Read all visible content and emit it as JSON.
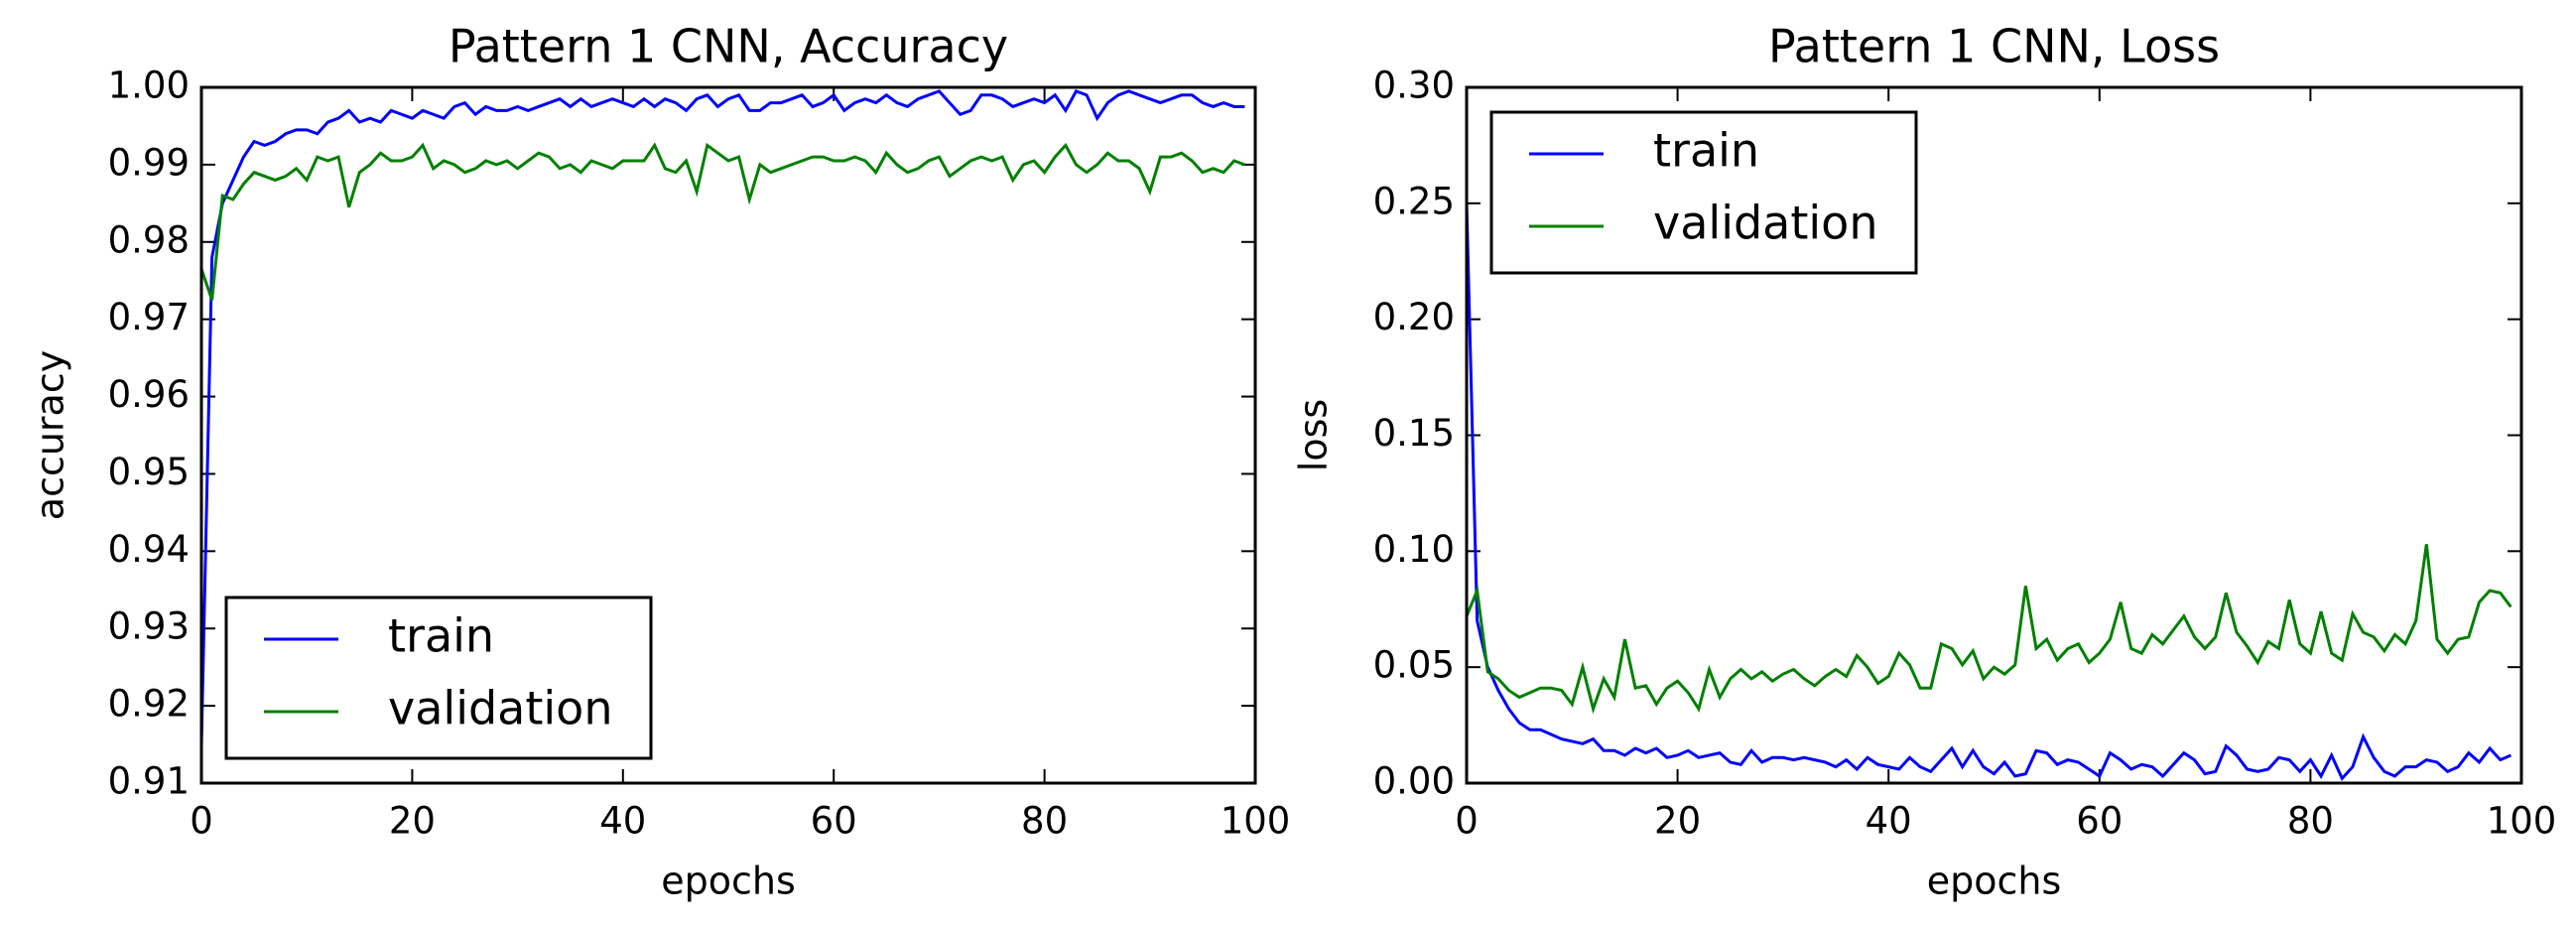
{
  "chart_data": [
    {
      "type": "line",
      "title": "Pattern 1 CNN, Accuracy",
      "x_label": "epochs",
      "y_label": "accuracy",
      "x": [
        0,
        1,
        2,
        3,
        4,
        5,
        6,
        7,
        8,
        9,
        10,
        11,
        12,
        13,
        14,
        15,
        16,
        17,
        18,
        19,
        20,
        21,
        22,
        23,
        24,
        25,
        26,
        27,
        28,
        29,
        30,
        31,
        32,
        33,
        34,
        35,
        36,
        37,
        38,
        39,
        40,
        41,
        42,
        43,
        44,
        45,
        46,
        47,
        48,
        49,
        50,
        51,
        52,
        53,
        54,
        55,
        56,
        57,
        58,
        59,
        60,
        61,
        62,
        63,
        64,
        65,
        66,
        67,
        68,
        69,
        70,
        71,
        72,
        73,
        74,
        75,
        76,
        77,
        78,
        79,
        80,
        81,
        82,
        83,
        84,
        85,
        86,
        87,
        88,
        89,
        90,
        91,
        92,
        93,
        94,
        95,
        96,
        97,
        98,
        99
      ],
      "series": [
        {
          "name": "train",
          "color": "#0000ff",
          "values": [
            0.915,
            0.978,
            0.985,
            0.988,
            0.991,
            0.993,
            0.9925,
            0.993,
            0.994,
            0.9945,
            0.9945,
            0.994,
            0.9955,
            0.996,
            0.997,
            0.9955,
            0.996,
            0.9955,
            0.997,
            0.9965,
            0.996,
            0.997,
            0.9965,
            0.996,
            0.9975,
            0.998,
            0.9965,
            0.9975,
            0.997,
            0.997,
            0.9975,
            0.997,
            0.9975,
            0.998,
            0.9985,
            0.9975,
            0.9985,
            0.9975,
            0.998,
            0.9985,
            0.998,
            0.9975,
            0.9985,
            0.9975,
            0.9985,
            0.998,
            0.997,
            0.9985,
            0.999,
            0.9975,
            0.9985,
            0.999,
            0.997,
            0.997,
            0.998,
            0.998,
            0.9985,
            0.999,
            0.9975,
            0.998,
            0.999,
            0.997,
            0.998,
            0.9985,
            0.998,
            0.999,
            0.998,
            0.9975,
            0.9985,
            0.999,
            0.9995,
            0.998,
            0.9965,
            0.997,
            0.999,
            0.999,
            0.9985,
            0.9975,
            0.998,
            0.9985,
            0.998,
            0.999,
            0.997,
            0.9995,
            0.999,
            0.996,
            0.998,
            0.999,
            0.9995,
            0.999,
            0.9985,
            0.998,
            0.9985,
            0.999,
            0.999,
            0.998,
            0.9975,
            0.998,
            0.9975,
            0.9975
          ]
        },
        {
          "name": "validation",
          "color": "#008000",
          "values": [
            0.9765,
            0.9725,
            0.986,
            0.9855,
            0.9875,
            0.989,
            0.9885,
            0.988,
            0.9885,
            0.9895,
            0.988,
            0.991,
            0.9905,
            0.991,
            0.9845,
            0.989,
            0.99,
            0.9915,
            0.9905,
            0.9905,
            0.991,
            0.9925,
            0.9895,
            0.9905,
            0.99,
            0.989,
            0.9895,
            0.9905,
            0.99,
            0.9905,
            0.9895,
            0.9905,
            0.9915,
            0.991,
            0.9895,
            0.99,
            0.989,
            0.9905,
            0.99,
            0.9895,
            0.9905,
            0.9905,
            0.9905,
            0.9925,
            0.9895,
            0.989,
            0.9905,
            0.9865,
            0.9925,
            0.9915,
            0.9905,
            0.991,
            0.9855,
            0.99,
            0.989,
            0.9895,
            0.99,
            0.9905,
            0.991,
            0.991,
            0.9905,
            0.9905,
            0.991,
            0.9905,
            0.989,
            0.9915,
            0.99,
            0.989,
            0.9895,
            0.9905,
            0.991,
            0.9885,
            0.9895,
            0.9905,
            0.991,
            0.9905,
            0.991,
            0.988,
            0.99,
            0.9905,
            0.989,
            0.991,
            0.9925,
            0.99,
            0.989,
            0.99,
            0.9915,
            0.9905,
            0.9905,
            0.9895,
            0.9865,
            0.991,
            0.991,
            0.9915,
            0.9905,
            0.989,
            0.9895,
            0.989,
            0.9905,
            0.99
          ]
        }
      ],
      "xlim": [
        0,
        100
      ],
      "xticks": [
        0,
        20,
        40,
        60,
        80,
        100
      ],
      "ylim": [
        0.91,
        1
      ],
      "yticks": [
        0.91,
        0.92,
        0.93,
        0.94,
        0.95,
        0.96,
        0.97,
        0.98,
        0.99,
        {
          "value": 1,
          "label": "1.00"
        }
      ],
      "grid": false,
      "legend": "lower left"
    },
    {
      "type": "line",
      "title": "Pattern 1 CNN, Loss",
      "x_label": "epochs",
      "y_label": "loss",
      "x": [
        0,
        1,
        2,
        3,
        4,
        5,
        6,
        7,
        8,
        9,
        10,
        11,
        12,
        13,
        14,
        15,
        16,
        17,
        18,
        19,
        20,
        21,
        22,
        23,
        24,
        25,
        26,
        27,
        28,
        29,
        30,
        31,
        32,
        33,
        34,
        35,
        36,
        37,
        38,
        39,
        40,
        41,
        42,
        43,
        44,
        45,
        46,
        47,
        48,
        49,
        50,
        51,
        52,
        53,
        54,
        55,
        56,
        57,
        58,
        59,
        60,
        61,
        62,
        63,
        64,
        65,
        66,
        67,
        68,
        69,
        70,
        71,
        72,
        73,
        74,
        75,
        76,
        77,
        78,
        79,
        80,
        81,
        82,
        83,
        84,
        85,
        86,
        87,
        88,
        89,
        90,
        91,
        92,
        93,
        94,
        95,
        96,
        97,
        98,
        99
      ],
      "series": [
        {
          "name": "train",
          "color": "#0000ff",
          "values": [
            0.25,
            0.07,
            0.05,
            0.04,
            0.032,
            0.026,
            0.023,
            0.023,
            0.021,
            0.019,
            0.018,
            0.017,
            0.019,
            0.014,
            0.014,
            0.012,
            0.015,
            0.013,
            0.015,
            0.011,
            0.012,
            0.014,
            0.011,
            0.012,
            0.013,
            0.009,
            0.008,
            0.014,
            0.009,
            0.011,
            0.011,
            0.01,
            0.011,
            0.01,
            0.009,
            0.007,
            0.01,
            0.006,
            0.011,
            0.008,
            0.007,
            0.006,
            0.011,
            0.007,
            0.005,
            0.01,
            0.015,
            0.007,
            0.014,
            0.007,
            0.004,
            0.009,
            0.003,
            0.004,
            0.014,
            0.013,
            0.008,
            0.01,
            0.009,
            0.006,
            0.003,
            0.013,
            0.01,
            0.006,
            0.008,
            0.007,
            0.003,
            0.008,
            0.013,
            0.01,
            0.004,
            0.005,
            0.016,
            0.012,
            0.006,
            0.005,
            0.006,
            0.011,
            0.01,
            0.005,
            0.01,
            0.003,
            0.012,
            0.002,
            0.007,
            0.02,
            0.011,
            0.005,
            0.003,
            0.007,
            0.007,
            0.01,
            0.009,
            0.005,
            0.007,
            0.013,
            0.009,
            0.015,
            0.01,
            0.012
          ]
        },
        {
          "name": "validation",
          "color": "#008000",
          "values": [
            0.072,
            0.083,
            0.048,
            0.045,
            0.04,
            0.037,
            0.039,
            0.041,
            0.041,
            0.04,
            0.034,
            0.05,
            0.032,
            0.045,
            0.037,
            0.062,
            0.041,
            0.042,
            0.034,
            0.041,
            0.044,
            0.039,
            0.032,
            0.049,
            0.037,
            0.045,
            0.049,
            0.045,
            0.048,
            0.044,
            0.047,
            0.049,
            0.045,
            0.042,
            0.046,
            0.049,
            0.046,
            0.055,
            0.05,
            0.043,
            0.046,
            0.056,
            0.051,
            0.041,
            0.041,
            0.06,
            0.058,
            0.051,
            0.057,
            0.045,
            0.05,
            0.047,
            0.051,
            0.085,
            0.058,
            0.062,
            0.053,
            0.058,
            0.06,
            0.052,
            0.056,
            0.062,
            0.078,
            0.058,
            0.056,
            0.064,
            0.06,
            0.066,
            0.072,
            0.063,
            0.058,
            0.063,
            0.082,
            0.065,
            0.059,
            0.052,
            0.061,
            0.058,
            0.079,
            0.06,
            0.056,
            0.074,
            0.056,
            0.053,
            0.073,
            0.065,
            0.063,
            0.057,
            0.064,
            0.06,
            0.07,
            0.103,
            0.062,
            0.056,
            0.062,
            0.063,
            0.078,
            0.083,
            0.082,
            0.076
          ]
        }
      ],
      "xlim": [
        0,
        100
      ],
      "xticks": [
        0,
        20,
        40,
        60,
        80,
        100
      ],
      "ylim": [
        0,
        0.3
      ],
      "yticks": [
        {
          "value": 0,
          "label": "0.00"
        },
        0.05,
        {
          "value": 0.1,
          "label": "0.10"
        },
        0.15,
        {
          "value": 0.2,
          "label": "0.20"
        },
        0.25,
        {
          "value": 0.3,
          "label": "0.30"
        }
      ],
      "grid": false,
      "legend": "upper left"
    }
  ]
}
